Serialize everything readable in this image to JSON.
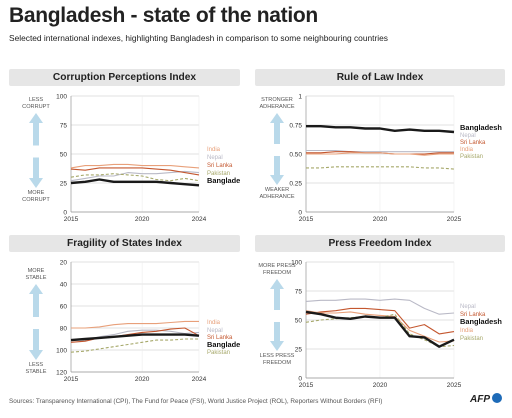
{
  "title": "Bangladesh - state of the nation",
  "subtitle": "Selected international indexes, highlighting Bangladesh in comparison to some neighbouring countries",
  "source": "Sources: Transparency International (CPI), The Fund for Peace (FSI), World Justice Project (ROL), Reporters Without Borders (RFI)",
  "logo": "AFP",
  "colors": {
    "Bangladesh": "#1a1a1a",
    "India": "#e8a07a",
    "Nepal": "#b9b9c6",
    "Sri Lanka": "#c4572f",
    "Pakistan": "#a6a86a",
    "arrow": "#b9d9ea"
  },
  "chart_data": [
    {
      "type": "line",
      "title": "Corruption Perceptions Index",
      "x_ticks": [
        "2015",
        "2020",
        "2024"
      ],
      "xlim": [
        2015,
        2024
      ],
      "y_ticks": [
        "100",
        "75",
        "50",
        "25",
        "0"
      ],
      "ylim": [
        0,
        100
      ],
      "y_inverted": false,
      "top_annotation": [
        "LESS",
        "CORRUPT"
      ],
      "bottom_annotation": [
        "MORE",
        "CORRUPT"
      ],
      "series": [
        {
          "name": "India",
          "x": [
            2015,
            2016,
            2017,
            2018,
            2019,
            2020,
            2021,
            2022,
            2023,
            2024
          ],
          "values": [
            38,
            40,
            40,
            41,
            41,
            40,
            40,
            40,
            39,
            38
          ]
        },
        {
          "name": "Nepal",
          "x": [
            2015,
            2016,
            2017,
            2018,
            2019,
            2020,
            2021,
            2022,
            2023,
            2024
          ],
          "values": [
            27,
            29,
            31,
            31,
            34,
            33,
            33,
            34,
            35,
            34
          ]
        },
        {
          "name": "Sri Lanka",
          "x": [
            2015,
            2016,
            2017,
            2018,
            2019,
            2020,
            2021,
            2022,
            2023,
            2024
          ],
          "values": [
            37,
            36,
            38,
            38,
            38,
            38,
            37,
            36,
            34,
            32
          ]
        },
        {
          "name": "Pakistan",
          "x": [
            2015,
            2016,
            2017,
            2018,
            2019,
            2020,
            2021,
            2022,
            2023,
            2024
          ],
          "values": [
            30,
            32,
            32,
            33,
            32,
            31,
            28,
            27,
            29,
            27
          ]
        },
        {
          "name": "Bangladesh",
          "x": [
            2015,
            2016,
            2017,
            2018,
            2019,
            2020,
            2021,
            2022,
            2023,
            2024
          ],
          "values": [
            25,
            26,
            28,
            26,
            26,
            26,
            26,
            25,
            24,
            23
          ]
        }
      ]
    },
    {
      "type": "line",
      "title": "Rule of Law Index",
      "x_ticks": [
        "2015",
        "2020",
        "2025"
      ],
      "xlim": [
        2015,
        2025
      ],
      "y_ticks": [
        "1",
        "0.75",
        "0.50",
        "0.25",
        "0"
      ],
      "ylim": [
        0,
        1
      ],
      "y_inverted": false,
      "top_annotation": [
        "STRONGER",
        "ADHERANCE"
      ],
      "bottom_annotation": [
        "WEAKER",
        "ADHERANCE"
      ],
      "series": [
        {
          "name": "Bangladesh",
          "x": [
            2015,
            2016,
            2017,
            2018,
            2019,
            2020,
            2021,
            2022,
            2023,
            2024,
            2025
          ],
          "values": [
            0.74,
            0.74,
            0.73,
            0.73,
            0.72,
            0.72,
            0.7,
            0.71,
            0.7,
            0.7,
            0.69
          ]
        },
        {
          "name": "Nepal",
          "x": [
            2015,
            2016,
            2017,
            2018,
            2019,
            2020,
            2021,
            2022,
            2023,
            2024,
            2025
          ],
          "values": [
            0.53,
            0.53,
            0.53,
            0.52,
            0.52,
            0.52,
            0.52,
            0.52,
            0.52,
            0.52,
            0.52
          ]
        },
        {
          "name": "Sri Lanka",
          "x": [
            2015,
            2016,
            2017,
            2018,
            2019,
            2020,
            2021,
            2022,
            2023,
            2024,
            2025
          ],
          "values": [
            0.51,
            0.51,
            0.52,
            0.52,
            0.51,
            0.51,
            0.5,
            0.5,
            0.5,
            0.51,
            0.51
          ]
        },
        {
          "name": "India",
          "x": [
            2015,
            2016,
            2017,
            2018,
            2019,
            2020,
            2021,
            2022,
            2023,
            2024,
            2025
          ],
          "values": [
            0.5,
            0.5,
            0.5,
            0.51,
            0.51,
            0.51,
            0.5,
            0.5,
            0.49,
            0.5,
            0.5
          ]
        },
        {
          "name": "Pakistan",
          "x": [
            2015,
            2016,
            2017,
            2018,
            2019,
            2020,
            2021,
            2022,
            2023,
            2024,
            2025
          ],
          "values": [
            0.38,
            0.38,
            0.39,
            0.39,
            0.39,
            0.39,
            0.39,
            0.39,
            0.38,
            0.38,
            0.37
          ]
        }
      ]
    },
    {
      "type": "line",
      "title": "Fragility of States Index",
      "x_ticks": [
        "2015",
        "2020",
        "2024"
      ],
      "xlim": [
        2015,
        2024
      ],
      "y_ticks": [
        "20",
        "40",
        "60",
        "80",
        "100",
        "120"
      ],
      "ylim": [
        20,
        120
      ],
      "y_inverted": true,
      "top_annotation": [
        "MORE",
        "STABLE"
      ],
      "bottom_annotation": [
        "LESS",
        "STABLE"
      ],
      "series": [
        {
          "name": "India",
          "x": [
            2015,
            2016,
            2017,
            2018,
            2019,
            2020,
            2021,
            2022,
            2023,
            2024
          ],
          "values": [
            80,
            80,
            79,
            77,
            76,
            76,
            76,
            75,
            74,
            74
          ]
        },
        {
          "name": "Nepal",
          "x": [
            2015,
            2016,
            2017,
            2018,
            2019,
            2020,
            2021,
            2022,
            2023,
            2024
          ],
          "values": [
            91,
            91,
            88,
            86,
            83,
            82,
            82,
            83,
            85,
            84
          ]
        },
        {
          "name": "Sri Lanka",
          "x": [
            2015,
            2016,
            2017,
            2018,
            2019,
            2020,
            2021,
            2022,
            2023,
            2024
          ],
          "values": [
            93,
            92,
            89,
            88,
            86,
            84,
            83,
            81,
            80,
            87
          ]
        },
        {
          "name": "Bangladesh",
          "x": [
            2015,
            2016,
            2017,
            2018,
            2019,
            2020,
            2021,
            2022,
            2023,
            2024
          ],
          "values": [
            91,
            90,
            89,
            88,
            87,
            86,
            86,
            86,
            86,
            87
          ]
        },
        {
          "name": "Pakistan",
          "x": [
            2015,
            2016,
            2017,
            2018,
            2019,
            2020,
            2021,
            2022,
            2023,
            2024
          ],
          "values": [
            102,
            101,
            99,
            97,
            95,
            93,
            91,
            91,
            90,
            90
          ]
        }
      ]
    },
    {
      "type": "line",
      "title": "Press Freedom Index",
      "x_ticks": [
        "2015",
        "2020",
        "2025"
      ],
      "xlim": [
        2015,
        2025
      ],
      "y_ticks": [
        "100",
        "75",
        "50",
        "25",
        "0"
      ],
      "ylim": [
        0,
        100
      ],
      "y_inverted": false,
      "top_annotation": [
        "MORE PRESS",
        "FREEDOM"
      ],
      "bottom_annotation": [
        "LESS PRESS",
        "FREEDOM"
      ],
      "series": [
        {
          "name": "Nepal",
          "x": [
            2015,
            2016,
            2017,
            2018,
            2019,
            2020,
            2021,
            2022,
            2023,
            2024,
            2025
          ],
          "values": [
            66,
            67,
            67,
            68,
            68,
            67,
            68,
            67,
            60,
            55,
            56
          ]
        },
        {
          "name": "Sri Lanka",
          "x": [
            2015,
            2016,
            2017,
            2018,
            2019,
            2020,
            2021,
            2022,
            2023,
            2024,
            2025
          ],
          "values": [
            55,
            57,
            58,
            60,
            60,
            59,
            58,
            43,
            46,
            38,
            40
          ]
        },
        {
          "name": "Bangladesh",
          "x": [
            2015,
            2016,
            2017,
            2018,
            2019,
            2020,
            2021,
            2022,
            2023,
            2024,
            2025
          ],
          "values": [
            57,
            55,
            52,
            51,
            53,
            52,
            52,
            36,
            35,
            27,
            33
          ]
        },
        {
          "name": "India",
          "x": [
            2015,
            2016,
            2017,
            2018,
            2019,
            2020,
            2021,
            2022,
            2023,
            2024,
            2025
          ],
          "values": [
            58,
            56,
            56,
            57,
            55,
            54,
            53,
            41,
            36,
            31,
            32
          ]
        },
        {
          "name": "Pakistan",
          "x": [
            2015,
            2016,
            2017,
            2018,
            2019,
            2020,
            2021,
            2022,
            2023,
            2024,
            2025
          ],
          "values": [
            48,
            50,
            51,
            52,
            53,
            52,
            55,
            38,
            33,
            27,
            28
          ]
        }
      ]
    }
  ]
}
